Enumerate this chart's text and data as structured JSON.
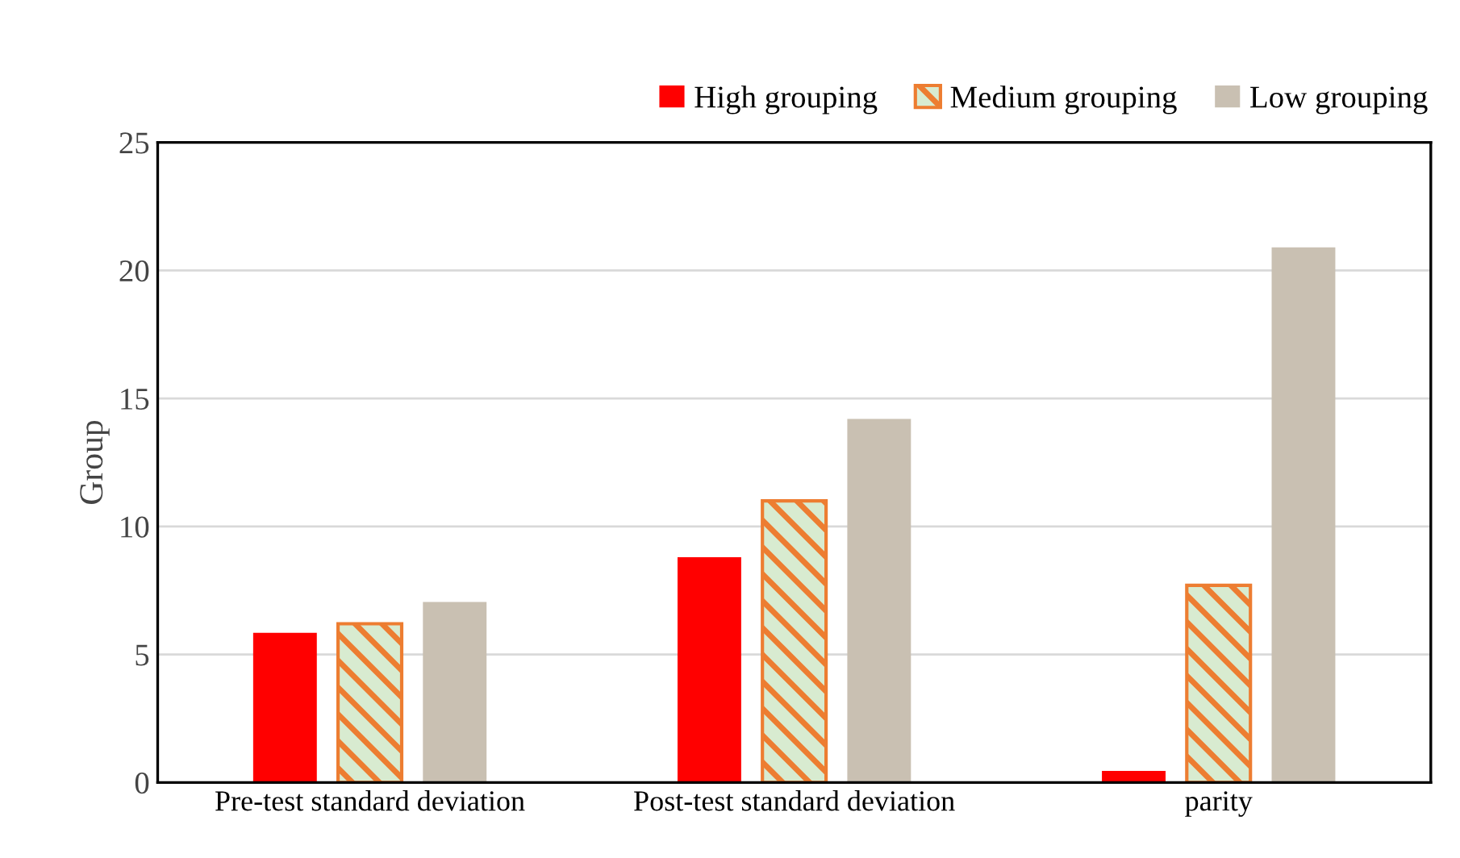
{
  "chart_data": {
    "type": "bar",
    "ylabel": "Group",
    "categories": [
      "Pre-test standard deviation",
      "Post-test standard deviation",
      "parity"
    ],
    "series": [
      {
        "name": "High grouping",
        "color": "#ff0000",
        "values": [
          5.85,
          8.8,
          0.45
        ]
      },
      {
        "name": "Medium grouping",
        "color": "#ed7d31",
        "values": [
          6.2,
          11.0,
          7.7
        ]
      },
      {
        "name": "Low grouping",
        "color": "#c9c0b2",
        "values": [
          7.05,
          14.2,
          20.9
        ]
      }
    ],
    "ylim": [
      0,
      25
    ],
    "yticks": [
      0,
      5,
      10,
      15,
      20,
      25
    ],
    "grid": "y",
    "legend": "top right"
  }
}
